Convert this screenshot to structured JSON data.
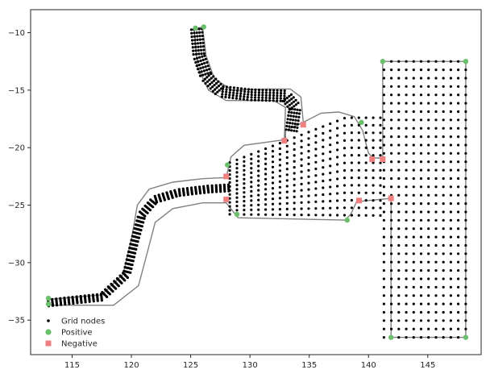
{
  "chart_data": {
    "type": "scatter",
    "title": "",
    "xlabel": "",
    "ylabel": "",
    "xlim": [
      111.5,
      149.5
    ],
    "ylim": [
      -38.0,
      -8.0
    ],
    "xticks": [
      115,
      120,
      125,
      130,
      135,
      140,
      145
    ],
    "yticks": [
      -10,
      -15,
      -20,
      -25,
      -30,
      -35
    ],
    "grid": false,
    "legend_position": "lower-left",
    "colors": {
      "grid_nodes": "#000000",
      "positive": "#6abf6a",
      "negative": "#f08080",
      "outline": "#808080",
      "axes": "#262626"
    },
    "outline": [
      [
        113.0,
        -33.2
      ],
      [
        117.5,
        -32.8
      ],
      [
        119.3,
        -31.0
      ],
      [
        120.0,
        -28.0
      ],
      [
        120.5,
        -25.0
      ],
      [
        121.5,
        -23.6
      ],
      [
        123.5,
        -23.0
      ],
      [
        126.0,
        -22.7
      ],
      [
        128.0,
        -22.6
      ],
      [
        128.4,
        -20.8
      ],
      [
        129.5,
        -19.8
      ],
      [
        133.0,
        -19.3
      ],
      [
        133.0,
        -18.5
      ],
      [
        134.5,
        -17.8
      ],
      [
        136.0,
        -17.0
      ],
      [
        137.5,
        -16.9
      ],
      [
        138.8,
        -17.3
      ],
      [
        139.5,
        -18.5
      ],
      [
        140.0,
        -20.5
      ],
      [
        140.4,
        -20.9
      ],
      [
        141.2,
        -20.9
      ],
      [
        141.2,
        -12.5
      ],
      [
        148.2,
        -12.5
      ],
      [
        148.2,
        -36.5
      ],
      [
        141.9,
        -36.5
      ],
      [
        141.9,
        -24.4
      ],
      [
        139.0,
        -24.7
      ],
      [
        138.5,
        -25.8
      ],
      [
        138.0,
        -26.3
      ],
      [
        129.0,
        -26.1
      ],
      [
        128.0,
        -24.8
      ],
      [
        126.0,
        -24.8
      ],
      [
        123.5,
        -25.3
      ],
      [
        122.0,
        -26.5
      ],
      [
        121.5,
        -28.5
      ],
      [
        120.6,
        -32.0
      ],
      [
        118.5,
        -33.7
      ],
      [
        113.0,
        -33.7
      ]
    ],
    "branch_outline": [
      [
        125.3,
        -9.7
      ],
      [
        126.0,
        -9.5
      ],
      [
        126.3,
        -12.0
      ],
      [
        127.0,
        -14.0
      ],
      [
        128.5,
        -15.0
      ],
      [
        131.5,
        -14.9
      ],
      [
        133.4,
        -14.9
      ],
      [
        134.3,
        -15.6
      ],
      [
        134.5,
        -17.8
      ],
      [
        133.0,
        -18.5
      ],
      [
        132.9,
        -19.3
      ],
      [
        133.0,
        -16.5
      ],
      [
        132.0,
        -15.9
      ],
      [
        128.0,
        -15.9
      ],
      [
        126.5,
        -15.0
      ],
      [
        125.6,
        -13.0
      ],
      [
        125.3,
        -9.7
      ]
    ],
    "series": [
      {
        "name": "Grid nodes",
        "marker": "dot",
        "regions": [
          {
            "region": "rectangular block",
            "x_range": [
              141.3,
              148.2
            ],
            "y_range": [
              -36.5,
              -12.5
            ],
            "columns": 12,
            "rows": 34
          },
          {
            "region": "western river channel",
            "centerline": [
              [
                113.0,
                -33.5
              ],
              [
                117.5,
                -33.0
              ],
              [
                119.6,
                -31.0
              ],
              [
                120.3,
                -28.0
              ],
              [
                120.9,
                -25.8
              ],
              [
                122.0,
                -24.5
              ],
              [
                124.0,
                -23.9
              ],
              [
                126.5,
                -23.6
              ],
              [
                128.2,
                -23.5
              ]
            ],
            "across": 5
          },
          {
            "region": "northern branch channel",
            "centerline": [
              [
                125.5,
                -9.7
              ],
              [
                125.7,
                -12.0
              ],
              [
                126.3,
                -13.8
              ],
              [
                127.5,
                -15.1
              ],
              [
                130.0,
                -15.4
              ],
              [
                133.0,
                -15.5
              ],
              [
                133.8,
                -16.5
              ],
              [
                133.5,
                -18.5
              ]
            ],
            "across": 5
          },
          {
            "region": "central basin",
            "x_range": [
              128.3,
              141.0
            ],
            "y_range": [
              -26.0,
              -17.2
            ],
            "columns": 22,
            "rows": 14
          }
        ]
      },
      {
        "name": "Positive",
        "marker": "circle",
        "points": [
          [
            113.0,
            -33.1
          ],
          [
            113.0,
            -33.6
          ],
          [
            125.4,
            -9.6
          ],
          [
            126.1,
            -9.5
          ],
          [
            141.2,
            -12.5
          ],
          [
            148.2,
            -12.5
          ],
          [
            141.9,
            -36.5
          ],
          [
            148.2,
            -36.5
          ],
          [
            139.4,
            -17.8
          ],
          [
            128.1,
            -21.5
          ],
          [
            128.9,
            -25.8
          ],
          [
            138.2,
            -26.3
          ]
        ]
      },
      {
        "name": "Negative",
        "marker": "square",
        "points": [
          [
            128.0,
            -22.5
          ],
          [
            128.0,
            -24.5
          ],
          [
            132.9,
            -19.4
          ],
          [
            134.5,
            -18.0
          ],
          [
            139.2,
            -24.6
          ],
          [
            140.3,
            -21.0
          ],
          [
            141.2,
            -21.0
          ],
          [
            141.9,
            -24.4
          ]
        ]
      }
    ]
  }
}
